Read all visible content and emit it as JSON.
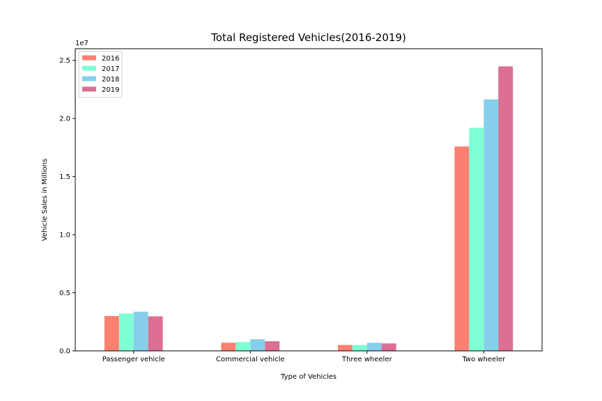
{
  "chart_data": {
    "type": "bar",
    "title": "Total Registered Vehicles(2016-2019)",
    "xlabel": "Type of Vehicles",
    "ylabel": "Vehicle Sales in Millions",
    "y_offset_label": "1e7",
    "categories": [
      "Passenger vehicle",
      "Commercial vehicle",
      "Three wheeler",
      "Two wheeler"
    ],
    "series": [
      {
        "name": "2016",
        "color": "#FA8072",
        "values": [
          3000000,
          700000,
          510000,
          17590000
        ]
      },
      {
        "name": "2017",
        "color": "#7FFFD4",
        "values": [
          3220000,
          760000,
          510000,
          19200000
        ]
      },
      {
        "name": "2018",
        "color": "#87CEEB",
        "values": [
          3370000,
          1000000,
          700000,
          21640000
        ]
      },
      {
        "name": "2019",
        "color": "#DB7093",
        "values": [
          2970000,
          830000,
          640000,
          24480000
        ]
      }
    ],
    "ylim": [
      0,
      26000000
    ],
    "yticks": [
      0,
      5000000,
      10000000,
      15000000,
      20000000,
      25000000
    ],
    "ytick_labels": [
      "0.0",
      "0.5",
      "1.0",
      "1.5",
      "2.0",
      "2.5"
    ],
    "grid": false,
    "legend_position": "upper-left"
  }
}
